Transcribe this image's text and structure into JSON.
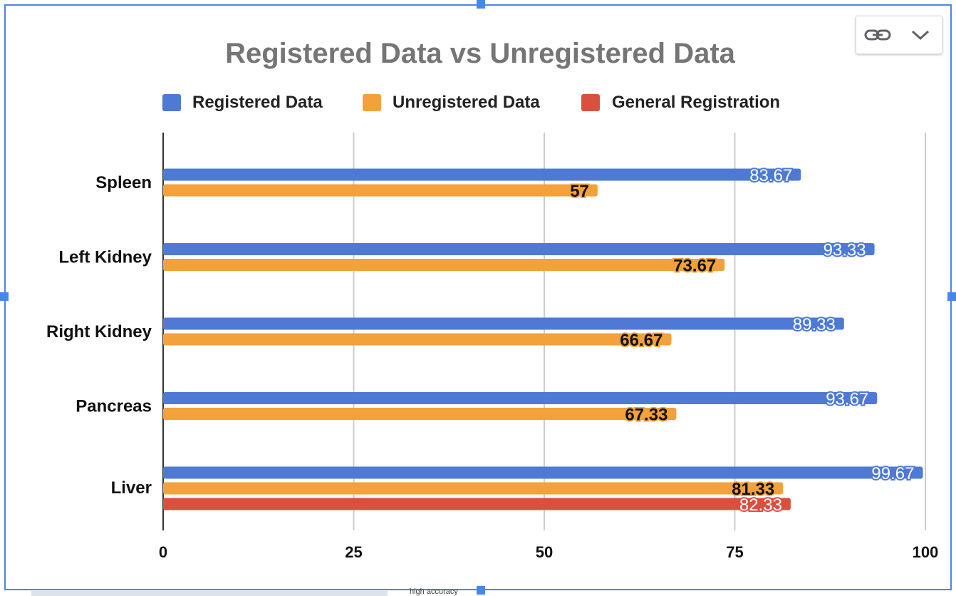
{
  "toolbar": {
    "link_icon": "link-icon",
    "menu_icon": "chevron-down-icon"
  },
  "bottom_text": "high accuracy",
  "chart_data": {
    "type": "bar",
    "orientation": "horizontal",
    "title": "Registered Data vs Unregistered Data",
    "xlabel": "",
    "ylabel": "",
    "categories": [
      "Spleen",
      "Left Kidney",
      "Right Kidney",
      "Pancreas",
      "Liver"
    ],
    "series": [
      {
        "name": "Registered Data",
        "color": "#4e7ad5",
        "values": [
          83.67,
          93.33,
          89.33,
          93.67,
          99.67
        ],
        "labels": [
          "83.67",
          "93.33",
          "89.33",
          "93.67",
          "99.67"
        ]
      },
      {
        "name": "Unregistered Data",
        "color": "#f3a13a",
        "values": [
          57,
          73.67,
          66.67,
          67.33,
          81.33
        ],
        "labels": [
          "57",
          "73.67",
          "66.67",
          "67.33",
          "81.33"
        ]
      },
      {
        "name": "General Registration",
        "color": "#d9503f",
        "values": [
          null,
          null,
          null,
          null,
          82.33
        ],
        "labels": [
          "",
          "",
          "",
          "",
          "82.33"
        ]
      }
    ],
    "xlim": [
      0,
      100
    ],
    "xticks": [
      "0",
      "25",
      "50",
      "75",
      "100"
    ],
    "grid": true,
    "legend_position": "top"
  }
}
